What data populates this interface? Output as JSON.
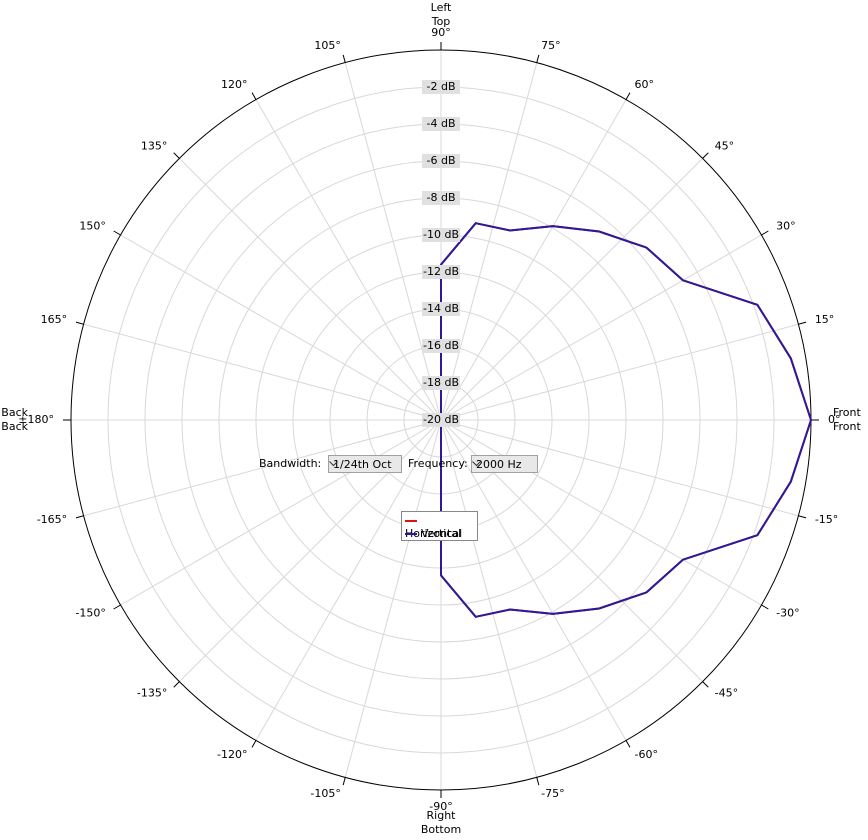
{
  "chart_data": {
    "type": "polar",
    "direction_labels": {
      "horizontal": {
        "top": "Left",
        "right": "Front",
        "left": "Back",
        "bottom": "Right",
        "color": "#d42020"
      },
      "vertical": {
        "top": "Top",
        "right": "Front",
        "left": "Back",
        "bottom": "Bottom",
        "color": "#2030c0"
      }
    },
    "x": [
      0,
      10,
      20,
      30,
      40,
      50,
      60,
      70,
      80,
      90,
      100,
      110,
      120,
      130,
      140,
      150,
      160,
      170,
      180,
      190,
      200,
      210,
      220,
      230,
      240,
      250,
      260,
      270,
      280,
      290,
      300,
      310,
      320,
      330,
      340,
      350
    ],
    "series": [
      {
        "name": "Horizontal",
        "color": "#e01010",
        "values": [
          0,
          -0.8,
          -1.8,
          -4.9,
          -5.5,
          -6.7,
          -7.9,
          -9.1,
          -9.2,
          -11.6,
          -20,
          -20,
          -20,
          -20,
          -20,
          -20,
          -20,
          -20,
          -20,
          -20,
          -20,
          -20,
          -20,
          -20,
          -20,
          -20,
          -20,
          -11.6,
          -9.2,
          -9.1,
          -7.9,
          -6.7,
          -5.5,
          -4.9,
          -1.8,
          -0.8
        ]
      },
      {
        "name": "Vertical",
        "color": "#2a1a9c",
        "values": [
          0,
          -0.8,
          -1.8,
          -4.9,
          -5.5,
          -6.7,
          -7.9,
          -9.1,
          -9.2,
          -11.6,
          -20,
          -20,
          -20,
          -20,
          -20,
          -20,
          -20,
          -20,
          -20,
          -20,
          -20,
          -20,
          -20,
          -20,
          -20,
          -20,
          -20,
          -11.6,
          -9.2,
          -9.1,
          -7.9,
          -6.7,
          -5.5,
          -4.9,
          -1.8,
          -0.8
        ]
      }
    ],
    "rlim": [
      -20,
      0
    ],
    "rticks": [
      {
        "value": -20,
        "label": "-20 dB"
      },
      {
        "value": -18,
        "label": "-18 dB"
      },
      {
        "value": -16,
        "label": "-16 dB"
      },
      {
        "value": -14,
        "label": "-14 dB"
      },
      {
        "value": -12,
        "label": "-12 dB"
      },
      {
        "value": -10,
        "label": "-10 dB"
      },
      {
        "value": -8,
        "label": "-8 dB"
      },
      {
        "value": -6,
        "label": "-6 dB"
      },
      {
        "value": -4,
        "label": "-4 dB"
      },
      {
        "value": -2,
        "label": "-2 dB"
      }
    ],
    "thetaticks": [
      {
        "value": 0,
        "label": "0°"
      },
      {
        "value": 15,
        "label": "15°"
      },
      {
        "value": 30,
        "label": "30°"
      },
      {
        "value": 45,
        "label": "45°"
      },
      {
        "value": 60,
        "label": "60°"
      },
      {
        "value": 75,
        "label": "75°"
      },
      {
        "value": 90,
        "label": "90°"
      },
      {
        "value": 105,
        "label": "105°"
      },
      {
        "value": 120,
        "label": "120°"
      },
      {
        "value": 135,
        "label": "135°"
      },
      {
        "value": 150,
        "label": "150°"
      },
      {
        "value": 165,
        "label": "165°"
      },
      {
        "value": 180,
        "label": "±180°"
      },
      {
        "value": -165,
        "label": "-165°"
      },
      {
        "value": -150,
        "label": "-150°"
      },
      {
        "value": -135,
        "label": "-135°"
      },
      {
        "value": -120,
        "label": "-120°"
      },
      {
        "value": -105,
        "label": "-105°"
      },
      {
        "value": -90,
        "label": "-90°"
      },
      {
        "value": -75,
        "label": "-75°"
      },
      {
        "value": -60,
        "label": "-60°"
      },
      {
        "value": -45,
        "label": "-45°"
      },
      {
        "value": -30,
        "label": "-30°"
      },
      {
        "value": -15,
        "label": "-15°"
      }
    ],
    "grid": true,
    "legend": "bottom-center"
  },
  "controls": {
    "bandwidth_label": "Bandwidth:",
    "bandwidth": "1/24th Oct",
    "frequency_label": "Frequency:",
    "frequency": "2000 Hz"
  }
}
